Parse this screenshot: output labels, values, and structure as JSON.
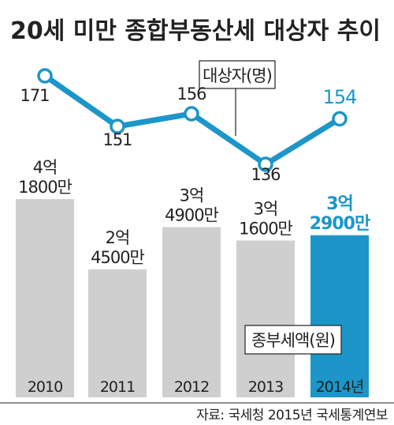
{
  "title": "20세 미만 종합부동산세 대상자 추이",
  "source": "자료: 국세청 2015년 국세통계연보",
  "colors": {
    "line": "#1c96c9",
    "highlight": "#1c96c9",
    "bar": "#cfcfcf",
    "bar_highlight": "#1c96c9"
  },
  "chart_data": [
    {
      "type": "line",
      "legend": "대상자(명)",
      "x": [
        "2010",
        "2011",
        "2012",
        "2013",
        "2014"
      ],
      "values": [
        171,
        151,
        156,
        136,
        154
      ],
      "labels": [
        "171",
        "151",
        "156",
        "136",
        "154"
      ],
      "highlight_index": 4
    },
    {
      "type": "bar",
      "legend": "종부세액(원)",
      "categories": [
        "2010",
        "2011",
        "2012",
        "2013",
        "2014년"
      ],
      "values": [
        418000000,
        245000000,
        349000000,
        316000000,
        329000000
      ],
      "label_lines": [
        [
          "4억",
          "1800만"
        ],
        [
          "2억",
          "4500만"
        ],
        [
          "3억",
          "4900만"
        ],
        [
          "3억",
          "1600만"
        ],
        [
          "3억",
          "2900만"
        ]
      ],
      "highlight_index": 4
    }
  ]
}
